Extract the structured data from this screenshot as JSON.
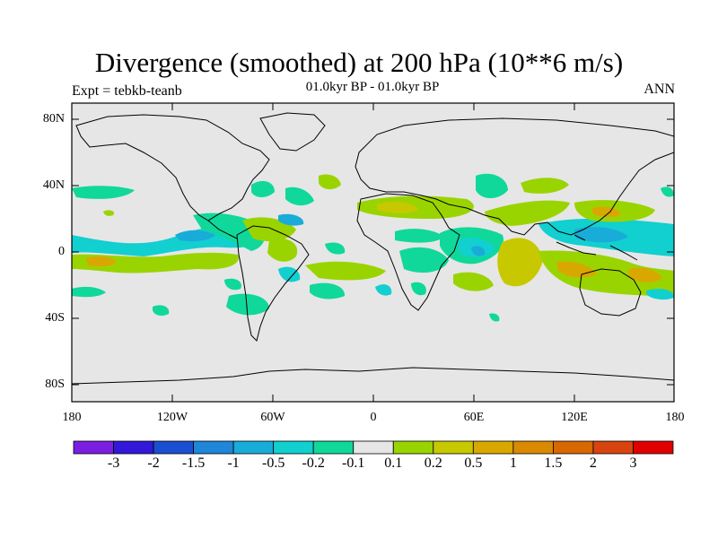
{
  "header": {
    "title": "Divergence (smoothed) at 200 hPa (10**6 m/s)",
    "subtitle": "01.0kyr BP - 01.0kyr BP",
    "experiment": "Expt = tebkb-teanb",
    "season": "ANN"
  },
  "axes": {
    "y_ticks": [
      "80N",
      "40N",
      "0",
      "40S",
      "80S"
    ],
    "x_ticks": [
      "180",
      "120W",
      "60W",
      "0",
      "60E",
      "120E",
      "180"
    ]
  },
  "colorbar": {
    "colors": [
      "#7a1fe0",
      "#3218d8",
      "#1a4fd2",
      "#1f86d8",
      "#19acd8",
      "#12cfd0",
      "#10d89a",
      "#e6e6e6",
      "#9ad400",
      "#c8c800",
      "#d9a800",
      "#d98a00",
      "#d86800",
      "#d84410",
      "#e00000"
    ],
    "labels": [
      "-3",
      "-2",
      "-1.5",
      "-1",
      "-0.5",
      "-0.2",
      "-0.1",
      "0.1",
      "0.2",
      "0.5",
      "1",
      "1.5",
      "2",
      "3"
    ]
  }
}
